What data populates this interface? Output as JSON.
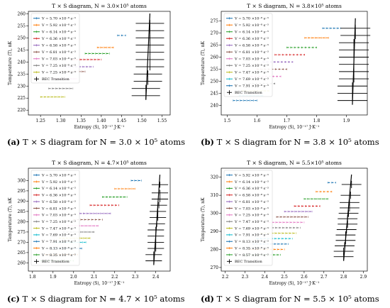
{
  "colors": [
    "#1f77b4",
    "#ff7f0e",
    "#2ca02c",
    "#d62728",
    "#9467bd",
    "#8c564b",
    "#e377c2",
    "#7f7f7f",
    "#bcbd22",
    "#17becf",
    "#1f77b4",
    "#ff7f0e",
    "#2ca02c"
  ],
  "captions": [
    {
      "label": "(a)",
      "text": "T × S diagram for N = 3.0 × 10⁵ atoms"
    },
    {
      "label": "(b)",
      "text": "T × S diagram for N = 3.8 × 10⁵ atoms"
    },
    {
      "label": "(c)",
      "text": "T × S diagram for N = 4.7 × 10⁵ atoms"
    },
    {
      "label": "(d)",
      "text": "T × S diagram for N = 5.5 × 10⁵ atoms"
    }
  ],
  "chart_data": [
    {
      "type": "scatter",
      "title": "T × S diagram, N = 3.0×10⁵ atoms",
      "xlabel": "Entropy ⟨S⟩, 10⁻¹⁷ J·K⁻¹",
      "ylabel": "Temperature ⟨T⟩, nK",
      "xlim": [
        1.22,
        1.57
      ],
      "ylim": [
        218,
        261
      ],
      "xticks": [
        "1.25",
        "1.30",
        "1.35",
        "1.40",
        "1.45",
        "1.50",
        "1.55"
      ],
      "yticks": [
        "220",
        "225",
        "230",
        "235",
        "240",
        "245",
        "250",
        "255",
        "260"
      ],
      "legend": "upper-left",
      "series": [
        {
          "name": "V = 5.70 ×10⁻⁸ s⁻³",
          "x": [
            1.44,
            1.46
          ],
          "y": [
            251,
            251
          ]
        },
        {
          "name": "V = 5.92 ×10⁻⁸ s⁻³",
          "x": [
            1.39,
            1.43
          ],
          "y": [
            246,
            246
          ]
        },
        {
          "name": "V = 6.14 ×10⁻⁸ s⁻³",
          "x": [
            1.36,
            1.42
          ],
          "y": [
            243.5,
            243.5
          ]
        },
        {
          "name": "V = 6.36 ×10⁻⁸ s⁻³",
          "x": [
            1.33,
            1.4
          ],
          "y": [
            241,
            241
          ]
        },
        {
          "name": "V = 6.58 ×10⁻⁸ s⁻³",
          "x": [
            1.31,
            1.38
          ],
          "y": [
            238,
            238
          ]
        },
        {
          "name": "V = 6.81 ×10⁻⁸ s⁻³",
          "x": [
            1.3,
            1.36
          ],
          "y": [
            236,
            236
          ]
        },
        {
          "name": "V = 7.03 ×10⁻⁸ s⁻³",
          "x": [
            1.28,
            1.34
          ],
          "y": [
            233,
            233
          ]
        },
        {
          "name": "V = 7.25 ×10⁻⁸ s⁻³",
          "x": [
            1.27,
            1.33
          ],
          "y": [
            229,
            229
          ]
        },
        {
          "name": "V = 7.25 ×10⁻⁸ s⁻³",
          "x": [
            1.25,
            1.31
          ],
          "y": [
            225.5,
            225.5
          ]
        }
      ],
      "transition": {
        "name": "BEC Transition",
        "x": [
          1.51,
          1.51,
          1.515,
          1.515,
          1.52,
          1.52,
          1.52,
          1.52,
          1.52,
          1.52,
          1.52
        ],
        "y": [
          226,
          229,
          232,
          235,
          238,
          241,
          244,
          247,
          250,
          253,
          256
        ],
        "xerr": 0.035,
        "yerr": 1.5
      }
    },
    {
      "type": "scatter",
      "title": "T × S diagram, N = 3.8×10⁵ atoms",
      "xlabel": "Entropy ⟨S⟩, 10⁻¹⁷ J·K⁻¹",
      "ylabel": "Temperature ⟨T⟩, nK",
      "xlim": [
        1.48,
        1.97
      ],
      "ylim": [
        236,
        279
      ],
      "xticks": [
        "1.5",
        "1.6",
        "1.7",
        "1.8",
        "1.9"
      ],
      "yticks": [
        "240",
        "245",
        "250",
        "255",
        "260",
        "265",
        "270",
        "275"
      ],
      "legend": "upper-left",
      "series": [
        {
          "name": "V = 5.70 ×10⁻⁸ s⁻³",
          "x": [
            1.82,
            1.88
          ],
          "y": [
            272,
            272
          ]
        },
        {
          "name": "V = 5.92 ×10⁻⁸ s⁻³",
          "x": [
            1.76,
            1.84
          ],
          "y": [
            268,
            268
          ]
        },
        {
          "name": "V = 6.14 ×10⁻⁸ s⁻³",
          "x": [
            1.7,
            1.8
          ],
          "y": [
            264,
            264
          ]
        },
        {
          "name": "V = 6.36 ×10⁻⁸ s⁻³",
          "x": [
            1.66,
            1.76
          ],
          "y": [
            261,
            261
          ]
        },
        {
          "name": "V = 6.58 ×10⁻⁸ s⁻³",
          "x": [
            1.62,
            1.72
          ],
          "y": [
            258,
            258
          ]
        },
        {
          "name": "V = 6.81 ×10⁻⁸ s⁻³",
          "x": [
            1.6,
            1.7
          ],
          "y": [
            255,
            255
          ]
        },
        {
          "name": "V = 7.03 ×10⁻⁸ s⁻³",
          "x": [
            1.58,
            1.68
          ],
          "y": [
            252,
            252
          ]
        },
        {
          "name": "V = 7.25 ×10⁻⁸ s⁻³",
          "x": [
            1.56,
            1.66
          ],
          "y": [
            249,
            249
          ]
        },
        {
          "name": "V = 7.47 ×10⁻⁸ s⁻³",
          "x": [
            1.55,
            1.64
          ],
          "y": [
            246,
            246
          ]
        },
        {
          "name": "V = 7.69 ×10⁻⁸ s⁻³",
          "x": [
            1.54,
            1.62
          ],
          "y": [
            244,
            244
          ]
        },
        {
          "name": "V = 7.91 ×10⁻⁸ s⁻³",
          "x": [
            1.52,
            1.6
          ],
          "y": [
            242,
            242
          ]
        }
      ],
      "transition": {
        "name": "BEC Transition",
        "x": [
          1.92,
          1.92,
          1.92,
          1.925,
          1.925,
          1.925,
          1.925,
          1.925,
          1.925,
          1.93,
          1.93
        ],
        "y": [
          242,
          245,
          248,
          251,
          254,
          257,
          260,
          263,
          266,
          269,
          272
        ],
        "xerr": 0.05,
        "yerr": 1.5
      }
    },
    {
      "type": "scatter",
      "title": "T × S diagram, N = 4.7×10⁵ atoms",
      "xlabel": "Entropy ⟨S⟩, 10⁻¹⁷ J·K⁻¹",
      "ylabel": "Temperature ⟨T⟩, nK",
      "xlim": [
        1.78,
        2.47
      ],
      "ylim": [
        256,
        306
      ],
      "xticks": [
        "1.8",
        "1.9",
        "2.0",
        "2.1",
        "2.2",
        "2.3",
        "2.4"
      ],
      "yticks": [
        "260",
        "265",
        "270",
        "275",
        "280",
        "285",
        "290",
        "295",
        "300"
      ],
      "legend": "upper-left",
      "series": [
        {
          "name": "V = 5.70 ×10⁻⁸ s⁻³",
          "x": [
            2.28,
            2.33
          ],
          "y": [
            300,
            300
          ]
        },
        {
          "name": "V = 5.92 ×10⁻⁸ s⁻³",
          "x": [
            2.2,
            2.3
          ],
          "y": [
            296,
            296
          ]
        },
        {
          "name": "V = 6.14 ×10⁻⁸ s⁻³",
          "x": [
            2.14,
            2.26
          ],
          "y": [
            292,
            292
          ]
        },
        {
          "name": "V = 6.36 ×10⁻⁸ s⁻³",
          "x": [
            2.08,
            2.22
          ],
          "y": [
            288,
            288
          ]
        },
        {
          "name": "V = 6.58 ×10⁻⁸ s⁻³",
          "x": [
            2.03,
            2.18
          ],
          "y": [
            284,
            284
          ]
        },
        {
          "name": "V = 6.81 ×10⁻⁸ s⁻³",
          "x": [
            2.0,
            2.14
          ],
          "y": [
            281,
            281
          ]
        },
        {
          "name": "V = 7.03 ×10⁻⁸ s⁻³",
          "x": [
            1.97,
            2.12
          ],
          "y": [
            278,
            278
          ]
        },
        {
          "name": "V = 7.25 ×10⁻⁸ s⁻³",
          "x": [
            1.95,
            2.1
          ],
          "y": [
            275,
            275
          ]
        },
        {
          "name": "V = 7.47 ×10⁻⁸ s⁻³",
          "x": [
            1.93,
            2.08
          ],
          "y": [
            272,
            272
          ]
        },
        {
          "name": "V = 7.69 ×10⁻⁸ s⁻³",
          "x": [
            1.91,
            2.06
          ],
          "y": [
            270,
            270
          ]
        },
        {
          "name": "V = 7.91 ×10⁻⁸ s⁻³",
          "x": [
            1.89,
            2.04
          ],
          "y": [
            267,
            267
          ]
        },
        {
          "name": "V = 8.13 ×10⁻⁸ s⁻³",
          "x": [
            1.86,
            2.02
          ],
          "y": [
            264,
            264
          ]
        },
        {
          "name": "V = 8.35 ×10⁻⁸ s⁻³",
          "x": [
            1.84,
            2.0
          ],
          "y": [
            261,
            261
          ]
        }
      ],
      "transition": {
        "name": "BEC Transition",
        "x": [
          2.39,
          2.39,
          2.4,
          2.4,
          2.4,
          2.4,
          2.405,
          2.41,
          2.41,
          2.415,
          2.42,
          2.42,
          2.42
        ],
        "y": [
          261,
          264,
          267,
          270,
          273,
          276,
          279,
          282,
          285,
          288,
          291,
          294,
          298
        ],
        "xerr": 0.04,
        "yerr": 1.5
      }
    },
    {
      "type": "scatter",
      "title": "T × S diagram, N = 5.5×10⁵ atoms",
      "xlabel": "Entropy ⟨S⟩, 10⁻¹⁷ J·K⁻¹",
      "ylabel": "Temperature ⟨T⟩, nK",
      "xlim": [
        2.18,
        2.92
      ],
      "ylim": [
        268,
        325
      ],
      "xticks": [
        "2.2",
        "2.3",
        "2.4",
        "2.5",
        "2.6",
        "2.7",
        "2.8",
        "2.9"
      ],
      "yticks": [
        "270",
        "280",
        "290",
        "300",
        "310",
        "320"
      ],
      "legend": "upper-left",
      "series": [
        {
          "name": "V = 5.92 ×10⁻⁸ s⁻³",
          "x": [
            2.72,
            2.76
          ],
          "y": [
            317,
            317
          ]
        },
        {
          "name": "V = 6.14 ×10⁻⁸ s⁻³",
          "x": [
            2.66,
            2.74
          ],
          "y": [
            312,
            312
          ]
        },
        {
          "name": "V = 6.36 ×10⁻⁸ s⁻³",
          "x": [
            2.6,
            2.72
          ],
          "y": [
            308,
            308
          ]
        },
        {
          "name": "V = 6.58 ×10⁻⁸ s⁻³",
          "x": [
            2.55,
            2.68
          ],
          "y": [
            304,
            304
          ]
        },
        {
          "name": "V = 6.81 ×10⁻⁸ s⁻³",
          "x": [
            2.5,
            2.64
          ],
          "y": [
            301,
            301
          ]
        },
        {
          "name": "V = 7.03 ×10⁻⁸ s⁻³",
          "x": [
            2.46,
            2.62
          ],
          "y": [
            298,
            298
          ]
        },
        {
          "name": "V = 7.25 ×10⁻⁸ s⁻³",
          "x": [
            2.42,
            2.6
          ],
          "y": [
            295,
            295
          ]
        },
        {
          "name": "V = 7.47 ×10⁻⁸ s⁻³",
          "x": [
            2.4,
            2.58
          ],
          "y": [
            292,
            292
          ]
        },
        {
          "name": "V = 7.69 ×10⁻⁸ s⁻³",
          "x": [
            2.38,
            2.56
          ],
          "y": [
            289,
            289
          ]
        },
        {
          "name": "V = 7.91 ×10⁻⁸ s⁻³",
          "x": [
            2.36,
            2.54
          ],
          "y": [
            286,
            286
          ]
        },
        {
          "name": "V = 8.13 ×10⁻⁸ s⁻³",
          "x": [
            2.34,
            2.52
          ],
          "y": [
            283,
            283
          ]
        },
        {
          "name": "V = 8.35 ×10⁻⁸ s⁻³",
          "x": [
            2.32,
            2.5
          ],
          "y": [
            280,
            280
          ]
        },
        {
          "name": "V = 8.57 ×10⁻⁸ s⁻³",
          "x": [
            2.3,
            2.48
          ],
          "y": [
            277,
            277
          ]
        }
      ],
      "transition": {
        "name": "BEC Transition",
        "x": [
          2.8,
          2.8,
          2.805,
          2.81,
          2.81,
          2.815,
          2.82,
          2.82,
          2.825,
          2.83,
          2.83,
          2.835,
          2.84
        ],
        "y": [
          276,
          279,
          282,
          285,
          288,
          291,
          294,
          297,
          300,
          303,
          306,
          310,
          316
        ],
        "xerr": 0.05,
        "yerr": 2
      }
    }
  ]
}
